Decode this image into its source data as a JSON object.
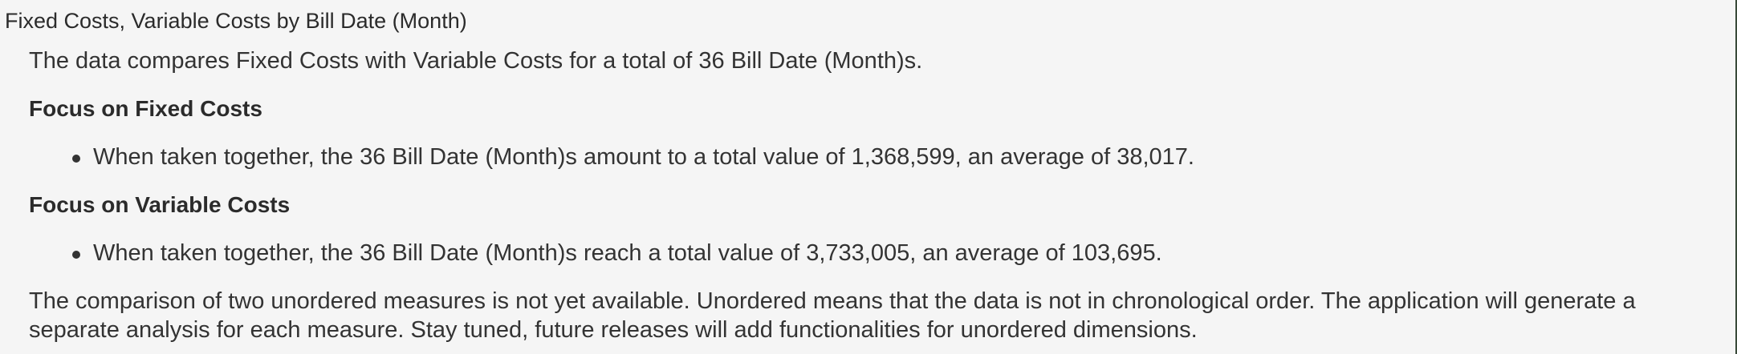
{
  "title": "Fixed Costs, Variable Costs by Bill Date (Month)",
  "intro": "The data compares Fixed Costs with Variable Costs for a total of 36 Bill Date (Month)s.",
  "sections": [
    {
      "heading": "Focus on Fixed Costs",
      "bullet": "When taken together, the 36 Bill Date (Month)s amount to a total value of 1,368,599, an average of 38,017."
    },
    {
      "heading": "Focus on Variable Costs",
      "bullet": "When taken together, the 36 Bill Date (Month)s reach a total value of 3,733,005, an average of 103,695."
    }
  ],
  "closing_line1": "The comparison of two unordered measures is not yet available. Unordered means that the data is not in chronological order. The application will generate a",
  "closing_line2": "separate analysis for each measure. Stay tuned, future releases will add functionalities for unordered dimensions.",
  "colors": {
    "background": "#f5f5f5",
    "text": "#333333",
    "edge_rule": "#3a4a3a"
  }
}
